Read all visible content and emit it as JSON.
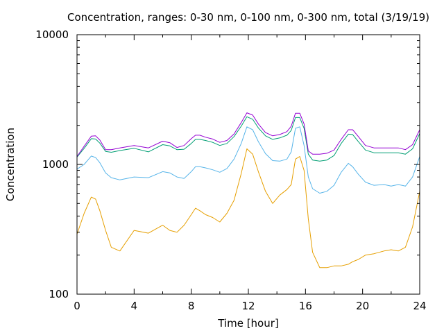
{
  "chart_data": {
    "type": "line",
    "title": "Concentration, ranges: 0-30 nm, 0-100 nm, 0-300 nm, total (3/19/19)",
    "xlabel": "Time [hour]",
    "ylabel": "Concentration",
    "xlim": [
      0,
      24
    ],
    "ylim": [
      100,
      10000
    ],
    "yscale": "log",
    "grid": false,
    "legend": "none",
    "x_ticks": [
      "0",
      "4",
      "8",
      "12",
      "16",
      "20",
      "24"
    ],
    "y_ticks": [
      "100",
      "1000",
      "10000"
    ],
    "x": [
      0,
      0.5,
      1,
      1.3,
      1.6,
      2,
      2.4,
      3,
      4,
      5,
      6,
      6.5,
      7,
      7.5,
      8,
      8.3,
      8.6,
      9,
      9.5,
      10,
      10.5,
      11,
      11.5,
      11.9,
      12.3,
      12.7,
      13.2,
      13.7,
      14.2,
      14.7,
      15,
      15.3,
      15.6,
      15.9,
      16.2,
      16.5,
      17,
      17.5,
      18,
      18.5,
      19,
      19.3,
      19.7,
      20.2,
      20.8,
      21.5,
      22,
      22.5,
      23,
      23.5,
      24
    ],
    "series": [
      {
        "color": "#e69f00",
        "values": [
          290,
          420,
          560,
          540,
          440,
          310,
          230,
          215,
          310,
          295,
          340,
          310,
          300,
          340,
          410,
          460,
          440,
          410,
          390,
          360,
          420,
          530,
          850,
          1320,
          1200,
          880,
          620,
          500,
          580,
          640,
          700,
          1100,
          1150,
          900,
          380,
          210,
          160,
          160,
          165,
          165,
          170,
          178,
          185,
          200,
          205,
          215,
          220,
          215,
          230,
          330,
          620
        ]
      },
      {
        "color": "#56b4e9",
        "values": [
          920,
          1000,
          1160,
          1130,
          1030,
          860,
          790,
          760,
          800,
          790,
          880,
          860,
          800,
          780,
          880,
          960,
          960,
          940,
          910,
          870,
          930,
          1100,
          1450,
          1950,
          1850,
          1500,
          1210,
          1070,
          1060,
          1100,
          1250,
          1900,
          1950,
          1400,
          800,
          650,
          600,
          620,
          690,
          870,
          1020,
          960,
          840,
          730,
          690,
          700,
          680,
          700,
          680,
          800,
          1150
        ]
      },
      {
        "color": "#009e73",
        "values": [
          1140,
          1330,
          1580,
          1570,
          1460,
          1260,
          1240,
          1280,
          1330,
          1250,
          1420,
          1390,
          1300,
          1310,
          1450,
          1560,
          1560,
          1530,
          1480,
          1400,
          1450,
          1640,
          1970,
          2330,
          2230,
          1910,
          1660,
          1560,
          1600,
          1680,
          1830,
          2300,
          2300,
          1900,
          1200,
          1080,
          1060,
          1080,
          1170,
          1450,
          1710,
          1700,
          1500,
          1290,
          1230,
          1230,
          1230,
          1230,
          1200,
          1320,
          1730
        ]
      },
      {
        "color": "#9400d3",
        "values": [
          1150,
          1380,
          1650,
          1660,
          1540,
          1300,
          1300,
          1340,
          1400,
          1340,
          1510,
          1470,
          1350,
          1400,
          1580,
          1680,
          1680,
          1620,
          1570,
          1480,
          1530,
          1720,
          2100,
          2500,
          2400,
          2050,
          1760,
          1660,
          1700,
          1790,
          1970,
          2480,
          2480,
          2050,
          1270,
          1200,
          1200,
          1220,
          1290,
          1560,
          1850,
          1850,
          1640,
          1400,
          1340,
          1340,
          1340,
          1340,
          1300,
          1420,
          1850
        ]
      }
    ]
  }
}
